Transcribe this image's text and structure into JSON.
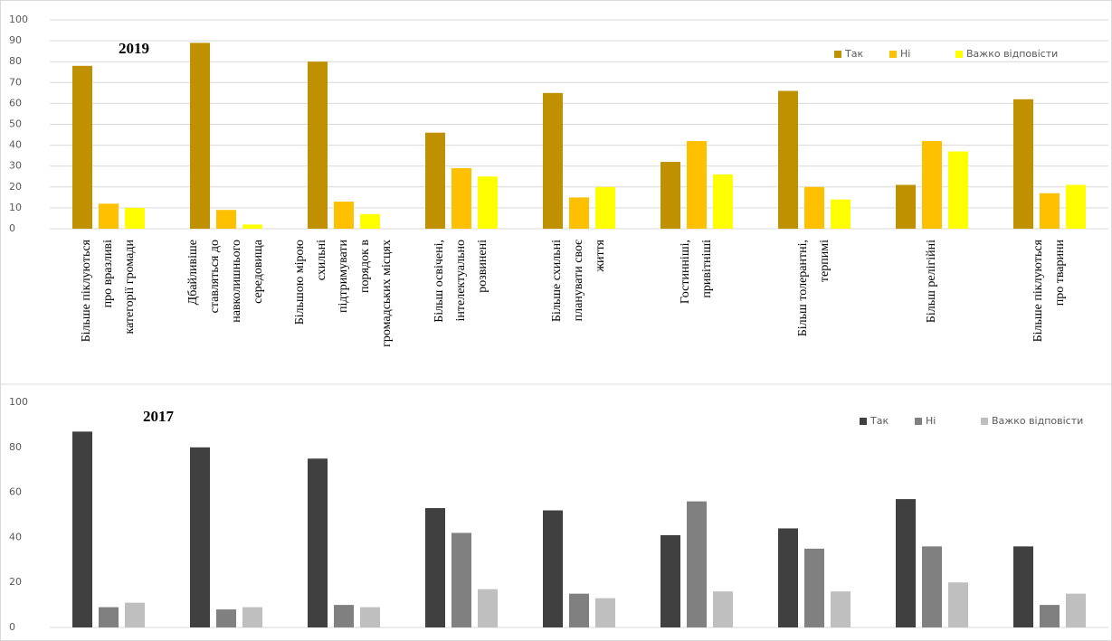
{
  "chart_data": [
    {
      "type": "bar",
      "title": "2019",
      "categories": [
        [
          "Більше піклуються",
          "про вразливі",
          "категорії громади"
        ],
        [
          "Дбайливіше",
          "ставляться до",
          "навколишнього",
          "середовища"
        ],
        [
          "Більшою мірою",
          "схильні",
          "підтримувати",
          "порядок в",
          "громадських місцях"
        ],
        [
          "Більш освічені,",
          "інтелектуально",
          "розвинені"
        ],
        [
          "Більше схильні",
          "планувати своє",
          "життя"
        ],
        [
          "Гостинніші,",
          "привітніші"
        ],
        [
          "Більш толерантні,",
          "терпимі"
        ],
        [
          "Більш релігійні"
        ],
        [
          "Більше піклуються",
          "про тварини"
        ]
      ],
      "series": [
        {
          "name": "Так",
          "color": "#bf9000",
          "values": [
            78,
            89,
            80,
            46,
            65,
            32,
            66,
            21,
            62
          ]
        },
        {
          "name": "Ні",
          "color": "#ffc000",
          "values": [
            12,
            9,
            13,
            29,
            15,
            42,
            20,
            42,
            17
          ]
        },
        {
          "name": "Важко відповісти",
          "color": "#ffff00",
          "values": [
            10,
            2,
            7,
            25,
            20,
            26,
            14,
            37,
            21
          ]
        }
      ],
      "ylim": [
        0,
        100
      ],
      "yticks": [
        0,
        10,
        20,
        30,
        40,
        50,
        60,
        70,
        80,
        90,
        100
      ],
      "grid": true
    },
    {
      "type": "bar",
      "title": "2017",
      "series": [
        {
          "name": "Так",
          "color": "#404040",
          "values": [
            87,
            80,
            75,
            53,
            52,
            41,
            44,
            57,
            36
          ]
        },
        {
          "name": "Ні",
          "color": "#808080",
          "values": [
            9,
            8,
            10,
            42,
            15,
            56,
            35,
            36,
            10
          ]
        },
        {
          "name": "Важко відповісти",
          "color": "#bfbfbf",
          "values": [
            11,
            9,
            9,
            17,
            13,
            16,
            16,
            20,
            15
          ]
        }
      ],
      "ylim": [
        0,
        100
      ],
      "yticks": [
        0,
        20,
        40,
        60,
        80,
        100
      ],
      "grid": false
    }
  ]
}
